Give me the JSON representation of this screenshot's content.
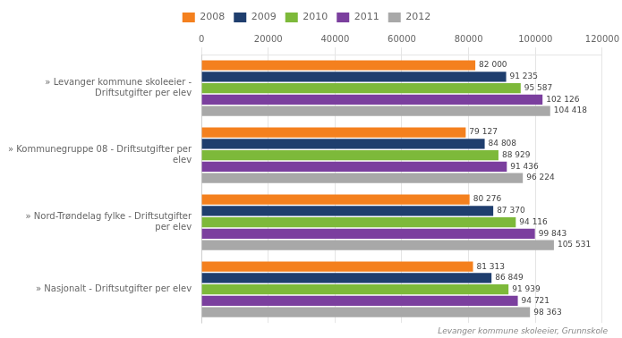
{
  "chart_data": {
    "type": "bar",
    "orientation": "horizontal",
    "categories": [
      "» Levanger kommune skoleeier -\nDriftsutgifter per elev",
      "» Kommunegruppe 08 - Driftsutgifter per\nelev",
      "» Nord-Trøndelag fylke - Driftsutgifter\nper elev",
      "» Nasjonalt - Driftsutgifter per elev"
    ],
    "series": [
      {
        "name": "2008",
        "color": "#f4801e",
        "values": [
          82000,
          79127,
          80276,
          81313
        ],
        "value_labels": [
          "82 000",
          "79 127",
          "80 276",
          "81 313"
        ]
      },
      {
        "name": "2009",
        "color": "#1f3e6e",
        "values": [
          91235,
          84808,
          87370,
          86849
        ],
        "value_labels": [
          "91 235",
          "84 808",
          "87 370",
          "86 849"
        ]
      },
      {
        "name": "2010",
        "color": "#7db93a",
        "values": [
          95587,
          88929,
          94116,
          91939
        ],
        "value_labels": [
          "95 587",
          "88 929",
          "94 116",
          "91 939"
        ]
      },
      {
        "name": "2011",
        "color": "#7b3f9e",
        "values": [
          102126,
          91436,
          99843,
          94721
        ],
        "value_labels": [
          "102 126",
          "91 436",
          "99 843",
          "94 721"
        ]
      },
      {
        "name": "2012",
        "color": "#a8a8a8",
        "values": [
          104418,
          96224,
          105531,
          98363
        ],
        "value_labels": [
          "104 418",
          "96 224",
          "105 531",
          "98 363"
        ]
      }
    ],
    "xlim": [
      0,
      120000
    ],
    "xticks": [
      0,
      20000,
      40000,
      60000,
      80000,
      100000,
      120000
    ],
    "grid": true,
    "legend": "top",
    "data_labels": true,
    "annotations": [
      "Levanger kommune skoleeier, Grunnskole"
    ]
  }
}
